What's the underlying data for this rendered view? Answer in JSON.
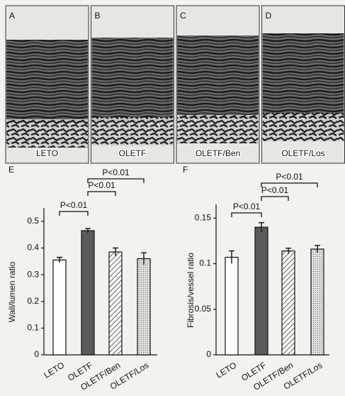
{
  "panels": [
    {
      "letter": "A",
      "label": "LETO"
    },
    {
      "letter": "B",
      "label": "OLETF"
    },
    {
      "letter": "C",
      "label": "OLETF/Ben"
    },
    {
      "letter": "D",
      "label": "OLETF/Los"
    }
  ],
  "chart_data": [
    {
      "type": "bar",
      "panel_label": "E",
      "y_label": "Wall/lumen ratio",
      "categories": [
        "LETO",
        "OLETF",
        "OLETF/Ben",
        "OLETF/Los"
      ],
      "values": [
        0.355,
        0.465,
        0.385,
        0.36
      ],
      "errors": [
        0.01,
        0.008,
        0.015,
        0.022
      ],
      "colors": [
        "#ffffff",
        "#5a5a5a",
        "hatch",
        "dots"
      ],
      "ylim": [
        0,
        0.55
      ],
      "yticks": [
        0,
        0.1,
        0.2,
        0.3,
        0.4,
        0.5
      ],
      "significance": [
        {
          "from": 0,
          "to": 1,
          "label": "P<0.01"
        },
        {
          "from": 1,
          "to": 2,
          "label": "P<0.01"
        },
        {
          "from": 1,
          "to": 3,
          "label": "P<0.01"
        }
      ]
    },
    {
      "type": "bar",
      "panel_label": "F",
      "y_label": "Fibrosis/vessel ratio",
      "categories": [
        "LETO",
        "OLETF",
        "OLETF/Ben",
        "OLETF/Los"
      ],
      "values": [
        0.107,
        0.14,
        0.114,
        0.116
      ],
      "errors": [
        0.007,
        0.005,
        0.003,
        0.004
      ],
      "colors": [
        "#ffffff",
        "#5a5a5a",
        "hatch",
        "dots"
      ],
      "ylim": [
        0,
        0.165
      ],
      "yticks": [
        0,
        0.05,
        0.1,
        0.15
      ],
      "significance": [
        {
          "from": 0,
          "to": 1,
          "label": "P<0.01"
        },
        {
          "from": 1,
          "to": 2,
          "label": "P<0.01"
        },
        {
          "from": 1,
          "to": 3,
          "label": "P<0.01"
        }
      ]
    }
  ]
}
